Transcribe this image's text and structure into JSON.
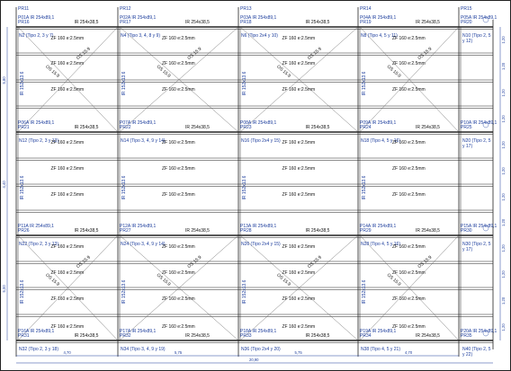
{
  "columns": [
    {
      "id": "PR11"
    },
    {
      "id": "PR12"
    },
    {
      "id": "PR13"
    },
    {
      "id": "PR14"
    },
    {
      "id": "PR15"
    }
  ],
  "beams": [
    {
      "row": 0,
      "col": 0,
      "code": "P01A",
      "section": "IR 254x89,1",
      "under": "PR16",
      "bottom": "IR 254x38,5"
    },
    {
      "row": 0,
      "col": 1,
      "code": "P02A",
      "section": "IR 254x89,1",
      "under": "PR17",
      "bottom": "IR 254x38,5"
    },
    {
      "row": 0,
      "col": 2,
      "code": "P03A",
      "section": "IR 254x89,1",
      "under": "PR18",
      "bottom": "IR 254x38,5"
    },
    {
      "row": 0,
      "col": 3,
      "code": "P04A",
      "section": "IR 254x89,1",
      "under": "PR19",
      "bottom": "IR 254x38,5"
    },
    {
      "row": 0,
      "col": 4,
      "code": "P05A",
      "section": "IR 254x89,1",
      "under": "PR20",
      "bottom": ""
    },
    {
      "row": 1,
      "col": 0,
      "code": "P06A",
      "section": "IR 254x89,1",
      "under": "PR21",
      "bottom": "IR 254x38,5"
    },
    {
      "row": 1,
      "col": 1,
      "code": "P07A",
      "section": "IR 254x89,1",
      "under": "PR22",
      "bottom": "IR 254x38,5"
    },
    {
      "row": 1,
      "col": 2,
      "code": "P08A",
      "section": "IR 254x89,1",
      "under": "PR23",
      "bottom": "IR 254x38,5"
    },
    {
      "row": 1,
      "col": 3,
      "code": "P09A",
      "section": "IR 254x89,1",
      "under": "PR24",
      "bottom": "IR 254x38,5"
    },
    {
      "row": 1,
      "col": 4,
      "code": "P10A",
      "section": "IR 254x89,1",
      "under": "PR25",
      "bottom": ""
    },
    {
      "row": 2,
      "col": 0,
      "code": "P11A",
      "section": "IR 254x89,1",
      "under": "PR26",
      "bottom": "IR 254x38,5"
    },
    {
      "row": 2,
      "col": 1,
      "code": "P12A",
      "section": "IR 254x89,1",
      "under": "PR27",
      "bottom": "IR 254x38,5"
    },
    {
      "row": 2,
      "col": 2,
      "code": "P13A",
      "section": "IR 254x89,1",
      "under": "PR28",
      "bottom": "IR 254x38,5"
    },
    {
      "row": 2,
      "col": 3,
      "code": "P14A",
      "section": "IR 254x89,1",
      "under": "PR29",
      "bottom": "IR 254x38,5"
    },
    {
      "row": 2,
      "col": 4,
      "code": "P15A",
      "section": "IR 254x89,1",
      "under": "PR30",
      "bottom": ""
    },
    {
      "row": 3,
      "col": 0,
      "code": "P16A",
      "section": "IR 254x89,1",
      "under": "PR31",
      "bottom": "IR 254x38,5"
    },
    {
      "row": 3,
      "col": 1,
      "code": "P17A",
      "section": "IR 254x89,1",
      "under": "PR32",
      "bottom": "IR 254x38,5"
    },
    {
      "row": 3,
      "col": 2,
      "code": "P18A",
      "section": "IR 254x89,1",
      "under": "PR33",
      "bottom": "IR 254x38,5"
    },
    {
      "row": 3,
      "col": 3,
      "code": "P19A",
      "section": "IR 254x89,1",
      "under": "PR34",
      "bottom": "IR 254x38,5"
    },
    {
      "row": 3,
      "col": 4,
      "code": "P20A",
      "section": "IR 254x89,1",
      "under": "PR35",
      "bottom": ""
    }
  ],
  "nodes": [
    {
      "row": 0,
      "col": 0,
      "text": "N2 (Tipo 2, 3 y 7)"
    },
    {
      "row": 0,
      "col": 1,
      "text": "N4 (Tipo 3, 4, 8 y 9)"
    },
    {
      "row": 0,
      "col": 2,
      "text": "N6 (Tipo 2x4 y 10)"
    },
    {
      "row": 0,
      "col": 3,
      "text": "N8 (Tipo 4, 5 y 11)"
    },
    {
      "row": 0,
      "col": 4,
      "text": "N10 (Tipo 2, 5 y 12)"
    },
    {
      "row": 1,
      "col": 0,
      "text": "N12 (Tipo 2, 3 y 13)"
    },
    {
      "row": 1,
      "col": 1,
      "text": "N14 (Tipo 3, 4, 9 y 14)"
    },
    {
      "row": 1,
      "col": 2,
      "text": "N16 (Tipo 2x4 y 15)"
    },
    {
      "row": 1,
      "col": 3,
      "text": "N18 (Tipo 4, 5 y 16)"
    },
    {
      "row": 1,
      "col": 4,
      "text": "N20 (Tipo 2, 5 y 17)"
    },
    {
      "row": 2,
      "col": 0,
      "text": "N22 (Tipo 2, 3 y 13)"
    },
    {
      "row": 2,
      "col": 1,
      "text": "N24 (Tipo 3, 4, 9 y 14)"
    },
    {
      "row": 2,
      "col": 2,
      "text": "N26 (Tipo 2x4 y 15)"
    },
    {
      "row": 2,
      "col": 3,
      "text": "N28 (Tipo 4, 5 y 16)"
    },
    {
      "row": 2,
      "col": 4,
      "text": "N30 (Tipo 2, 5 y 17)"
    },
    {
      "row": 3,
      "col": 0,
      "text": "N32 (Tipo 2, 3 y 18)"
    },
    {
      "row": 3,
      "col": 1,
      "text": "N34 (Tipo 3, 4, 9 y 19)"
    },
    {
      "row": 3,
      "col": 2,
      "text": "N36 (Tipo 2x4 y 20)"
    },
    {
      "row": 3,
      "col": 3,
      "text": "N38 (Tipo 4, 5 y 21)"
    },
    {
      "row": 3,
      "col": 4,
      "text": "N40 (Tipo 2, 5 y 22)"
    }
  ],
  "joist_label": "ZF 160 e:2.5mm",
  "brace_label": "OS 15.9",
  "vertical_member_label": "IR 152x13.6",
  "bays": [
    "4,70",
    "5,75",
    "5,75",
    "4,70"
  ],
  "total_width": "20,90",
  "left_dims": [
    "5,80",
    "4,40",
    "5,00"
  ],
  "right_dims": [
    "1,20",
    "1,20",
    "1,20",
    "1,20",
    "1,20",
    "1,20",
    "1,20",
    "1,20",
    "1,20",
    "1,20",
    "1,20",
    "1,20"
  ],
  "colors": {
    "line": "#1b3c9c",
    "text": "#1b3c9c",
    "frame": "#222222"
  }
}
